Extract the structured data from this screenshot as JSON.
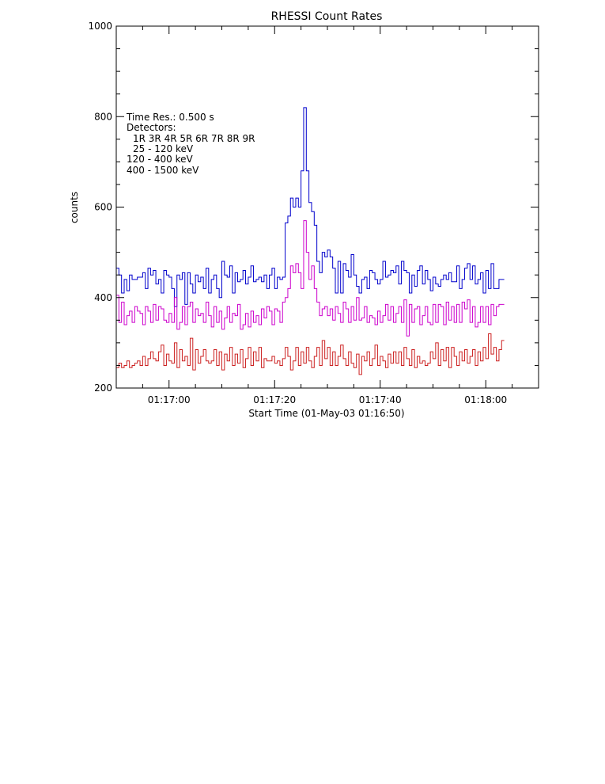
{
  "chart_data": {
    "type": "line",
    "step": true,
    "title": "RHESSI Count Rates",
    "xlabel": "Start Time (01-May-03 01:16:50)",
    "ylabel": "counts",
    "xlim": [
      0,
      80
    ],
    "ylim": [
      200,
      1000
    ],
    "x_ticks": [
      {
        "value": 10,
        "label": "01:17:00"
      },
      {
        "value": 30,
        "label": "01:17:20"
      },
      {
        "value": 50,
        "label": "01:17:40"
      },
      {
        "value": 70,
        "label": "01:18:00"
      }
    ],
    "y_ticks": [
      200,
      400,
      600,
      800,
      1000
    ],
    "grid": false,
    "x_start": 0,
    "x_step": 0.5,
    "annotations": {
      "time_res": "Time Res.: 0.500 s",
      "detectors_label": "Detectors:",
      "detectors": "1R 3R 4R 5R 6R 7R 8R 9R"
    },
    "series": [
      {
        "name": "25 - 120 keV",
        "color": "#0000cc",
        "values": [
          465,
          450,
          410,
          440,
          415,
          450,
          440,
          440,
          445,
          445,
          455,
          420,
          465,
          450,
          460,
          430,
          440,
          410,
          460,
          450,
          445,
          420,
          380,
          450,
          440,
          455,
          385,
          455,
          430,
          410,
          450,
          435,
          445,
          420,
          465,
          410,
          440,
          450,
          420,
          400,
          480,
          450,
          445,
          470,
          410,
          455,
          435,
          440,
          460,
          430,
          445,
          470,
          435,
          440,
          445,
          435,
          450,
          420,
          450,
          465,
          420,
          445,
          440,
          445,
          565,
          580,
          620,
          600,
          620,
          600,
          680,
          820,
          680,
          610,
          590,
          560,
          480,
          455,
          500,
          490,
          505,
          490,
          465,
          410,
          480,
          410,
          475,
          460,
          445,
          495,
          450,
          425,
          410,
          440,
          445,
          420,
          460,
          455,
          440,
          430,
          440,
          480,
          445,
          450,
          460,
          455,
          470,
          430,
          480,
          460,
          455,
          410,
          450,
          425,
          460,
          470,
          430,
          460,
          440,
          415,
          445,
          430,
          425,
          440,
          450,
          440,
          455,
          435,
          435,
          470,
          420,
          440,
          465,
          475,
          440,
          470,
          430,
          440,
          455,
          410,
          460,
          420,
          475,
          420,
          420,
          440,
          440
        ]
      },
      {
        "name": "120 - 400 keV",
        "color": "#cc00cc",
        "values": [
          405,
          345,
          390,
          340,
          360,
          370,
          345,
          380,
          370,
          365,
          340,
          380,
          370,
          345,
          385,
          350,
          380,
          375,
          350,
          345,
          365,
          345,
          400,
          330,
          345,
          380,
          340,
          380,
          390,
          345,
          375,
          360,
          365,
          345,
          390,
          360,
          335,
          380,
          345,
          370,
          330,
          355,
          380,
          345,
          365,
          360,
          385,
          330,
          340,
          365,
          335,
          370,
          345,
          360,
          340,
          375,
          355,
          380,
          370,
          340,
          375,
          370,
          345,
          390,
          400,
          420,
          470,
          455,
          475,
          455,
          420,
          570,
          500,
          440,
          470,
          420,
          390,
          360,
          375,
          380,
          360,
          375,
          350,
          380,
          365,
          345,
          390,
          375,
          345,
          380,
          350,
          400,
          350,
          355,
          380,
          345,
          360,
          355,
          340,
          370,
          345,
          360,
          385,
          350,
          380,
          345,
          365,
          380,
          345,
          395,
          315,
          385,
          345,
          375,
          380,
          340,
          360,
          380,
          345,
          340,
          385,
          345,
          385,
          380,
          340,
          390,
          350,
          380,
          345,
          385,
          345,
          390,
          375,
          395,
          345,
          380,
          335,
          345,
          380,
          345,
          380,
          340,
          385,
          360,
          380,
          385,
          385
        ]
      },
      {
        "name": "400 - 1500 keV",
        "color": "#cc2020",
        "values": [
          245,
          255,
          245,
          250,
          260,
          245,
          250,
          255,
          260,
          250,
          270,
          250,
          265,
          280,
          265,
          260,
          280,
          295,
          250,
          275,
          260,
          255,
          300,
          245,
          285,
          260,
          270,
          250,
          310,
          240,
          285,
          255,
          270,
          285,
          260,
          255,
          260,
          285,
          250,
          280,
          240,
          275,
          260,
          290,
          250,
          275,
          255,
          285,
          245,
          265,
          290,
          250,
          280,
          260,
          290,
          245,
          265,
          260,
          260,
          270,
          255,
          260,
          250,
          265,
          290,
          270,
          240,
          260,
          290,
          250,
          280,
          255,
          290,
          260,
          245,
          270,
          290,
          250,
          305,
          265,
          290,
          250,
          280,
          250,
          270,
          295,
          265,
          250,
          280,
          255,
          245,
          275,
          230,
          270,
          260,
          280,
          250,
          265,
          295,
          250,
          270,
          260,
          245,
          275,
          255,
          280,
          255,
          280,
          250,
          290,
          265,
          250,
          285,
          245,
          270,
          255,
          260,
          250,
          255,
          280,
          265,
          300,
          250,
          285,
          260,
          290,
          245,
          290,
          270,
          250,
          280,
          260,
          285,
          255,
          270,
          285,
          250,
          280,
          260,
          290,
          265,
          320,
          275,
          290,
          260,
          285,
          305
        ]
      }
    ]
  }
}
